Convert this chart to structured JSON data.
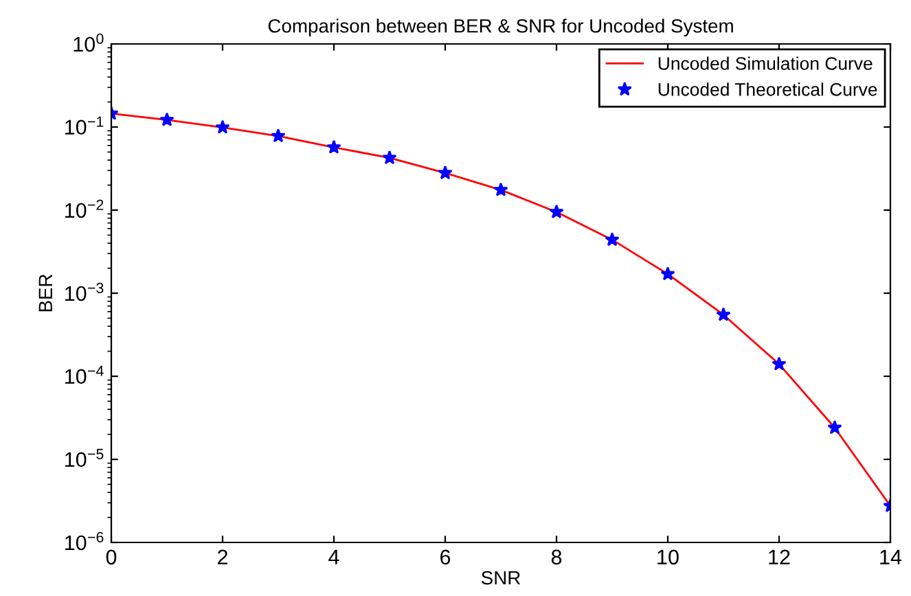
{
  "chart_data": {
    "type": "line",
    "title": "Comparison between BER & SNR for Uncoded System",
    "xlabel": "SNR",
    "ylabel": "BER",
    "x": [
      0,
      1,
      2,
      3,
      4,
      5,
      6,
      7,
      8,
      9,
      10,
      11,
      12,
      13,
      14
    ],
    "series": [
      {
        "name": "Uncoded Simulation Curve",
        "color": "#ff0000",
        "marker": "none",
        "line_style": "solid",
        "values": [
          0.145,
          0.122,
          0.099,
          0.078,
          0.057,
          0.0425,
          0.028,
          0.0175,
          0.0095,
          0.0044,
          0.0017,
          0.00055,
          0.00014,
          2.4e-05,
          2.75e-06
        ]
      },
      {
        "name": "Uncoded Theoretical Curve",
        "type": "scatter",
        "color": "#0000ff",
        "marker": "star",
        "values": [
          0.145,
          0.122,
          0.099,
          0.078,
          0.057,
          0.0425,
          0.028,
          0.0175,
          0.0095,
          0.0044,
          0.0017,
          0.00055,
          0.00014,
          2.4e-05,
          2.75e-06
        ]
      }
    ],
    "log": "y",
    "xlim": [
      0,
      14
    ],
    "ylim": [
      1e-06,
      1
    ],
    "xticks": [
      0,
      2,
      4,
      6,
      8,
      10,
      12,
      14
    ],
    "yticks": [
      {
        "value": 1,
        "label": "10$^{0}$"
      },
      {
        "value": 0.1,
        "label": "10$^{−1}$"
      },
      {
        "value": 0.01,
        "label": "10$^{−2}$"
      },
      {
        "value": 0.001,
        "label": "10$^{−3}$"
      },
      {
        "value": 0.0001,
        "label": "10$^{−4}$"
      },
      {
        "value": 1e-05,
        "label": "10$^{−5}$"
      },
      {
        "value": 1e-06,
        "label": "10$^{−6}$"
      }
    ],
    "grid": false,
    "legend": "top right"
  }
}
